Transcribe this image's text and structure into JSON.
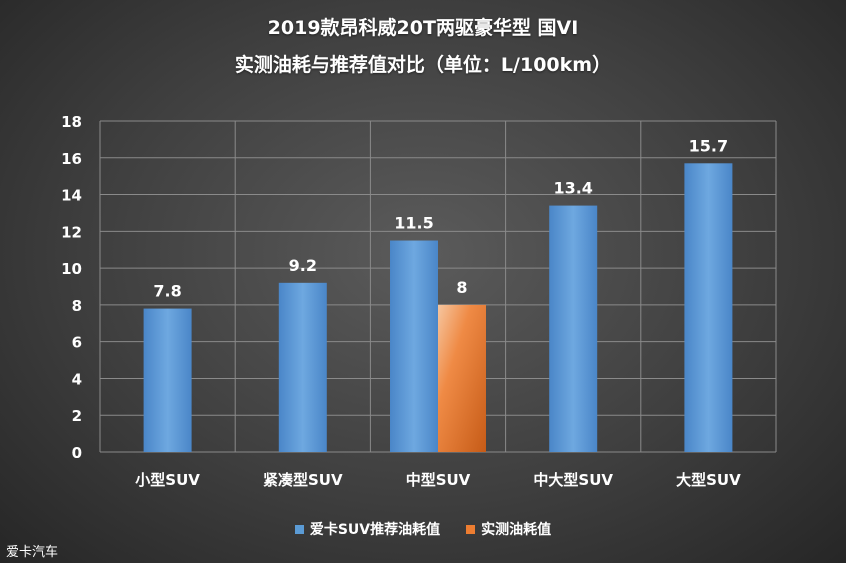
{
  "chart_data": {
    "type": "bar",
    "title": "2019款昂科威20T两驱豪华型 国VI",
    "subtitle": "实测油耗与推荐值对比（单位：L/100km）",
    "categories": [
      "小型SUV",
      "紧凑型SUV",
      "中型SUV",
      "中大型SUV",
      "大型SUV"
    ],
    "series": [
      {
        "name": "爱卡SUV推荐油耗值",
        "values": [
          7.8,
          9.2,
          11.5,
          13.4,
          15.7
        ],
        "color": "#5b9bd5"
      },
      {
        "name": "实测油耗值",
        "values": [
          null,
          null,
          8,
          null,
          null
        ],
        "color": "#ed7d31"
      }
    ],
    "data_labels": [
      [
        "7.8",
        "9.2",
        "11.5",
        "13.4",
        "15.7"
      ],
      [
        "",
        "",
        "8",
        "",
        ""
      ]
    ],
    "y_ticks": [
      "0",
      "2",
      "4",
      "6",
      "8",
      "10",
      "12",
      "14",
      "16",
      "18"
    ],
    "ylim": [
      0,
      18
    ],
    "grid": true,
    "legend_position": "bottom"
  },
  "watermark": "爱卡汽车"
}
